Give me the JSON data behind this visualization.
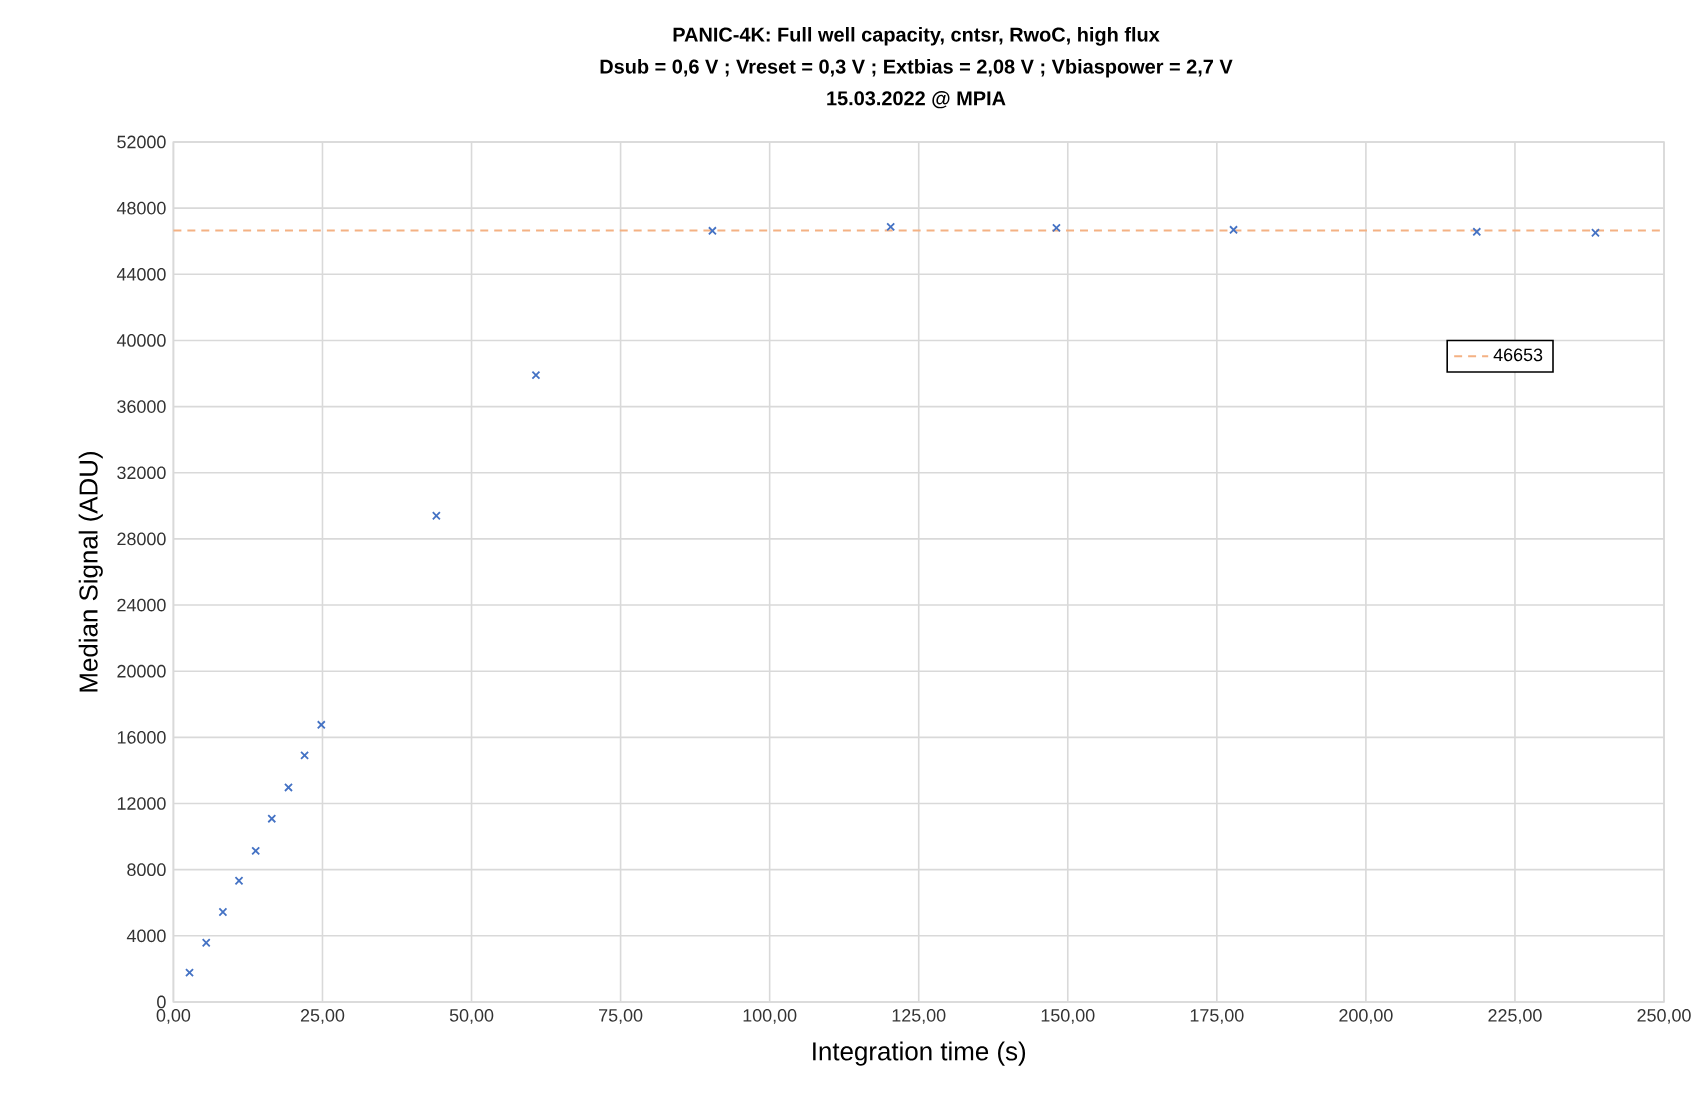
{
  "chart_data": {
    "type": "scatter",
    "title": "PANIC-4K:  Full well capacity, cntsr, RwoC, high flux",
    "subtitle": "Dsub = 0,6 V ; Vreset = 0,3 V ; Extbias = 2,08 V ; Vbiaspower = 2,7 V",
    "annotations": [
      "15.03.2022 @ MPIA"
    ],
    "xlabel": "Integration time (s)",
    "ylabel": "Median Signal (ADU)",
    "x": [
      2.7,
      5.5,
      8.3,
      11.0,
      13.8,
      16.5,
      19.3,
      22.0,
      24.8,
      44.1,
      60.8,
      90.4,
      120.3,
      148.1,
      177.8,
      218.6,
      238.5
    ],
    "series": [
      {
        "color": "#4472c4",
        "values": [
          1770,
          3580,
          5440,
          7330,
          9140,
          11080,
          12970,
          14910,
          16760,
          29400,
          37900,
          46630,
          46870,
          46810,
          46690,
          46570,
          46510
        ]
      }
    ],
    "marker": "cross",
    "grid": true,
    "legend": "right",
    "ref_lines": [
      {
        "axis": "y",
        "value": 46653,
        "label": "46653",
        "color": "#f4b183",
        "line_style": "dashed"
      }
    ],
    "xlim": [
      0,
      250
    ],
    "ylim": [
      0,
      52000
    ],
    "xticks": [
      {
        "value": 0,
        "label": "0,00"
      },
      {
        "value": 25,
        "label": "25,00"
      },
      {
        "value": 50,
        "label": "50,00"
      },
      {
        "value": 75,
        "label": "75,00"
      },
      {
        "value": 100,
        "label": "100,00"
      },
      {
        "value": 125,
        "label": "125,00"
      },
      {
        "value": 150,
        "label": "150,00"
      },
      {
        "value": 175,
        "label": "175,00"
      },
      {
        "value": 200,
        "label": "200,00"
      },
      {
        "value": 225,
        "label": "225,00"
      },
      {
        "value": 250,
        "label": "250,00"
      }
    ],
    "yticks": [
      0,
      4000,
      8000,
      12000,
      16000,
      20000,
      24000,
      28000,
      32000,
      36000,
      40000,
      44000,
      48000,
      52000
    ]
  }
}
